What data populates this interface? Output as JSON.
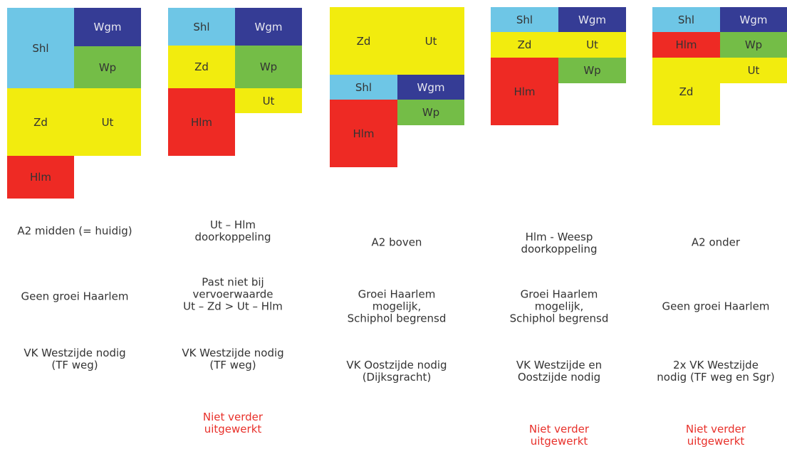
{
  "colors": {
    "Shl": "#6ec6e6",
    "Wgm": "#353c95",
    "Wp": "#74bd47",
    "Zd": "#f2ec0e",
    "Ut": "#f2ec0e",
    "Hlm": "#ee2a24"
  },
  "variants": [
    {
      "blocks": [
        {
          "label": "Shl",
          "color": "#6ec6e6"
        },
        {
          "label": "Wgm",
          "color": "#353c95"
        },
        {
          "label": "Wp",
          "color": "#74bd47"
        },
        {
          "label": "Zd",
          "color": "#f2ec0e"
        },
        {
          "label": "Ut",
          "color": "#f2ec0e"
        },
        {
          "label": "Hlm",
          "color": "#ee2a24"
        }
      ],
      "name": "A2 midden (= huidig)",
      "growth": "Geen groei Haarlem",
      "requirement": "VK Westzijde nodig\n(TF weg)",
      "status": ""
    },
    {
      "blocks": [
        {
          "label": "Shl",
          "color": "#6ec6e6"
        },
        {
          "label": "Wgm",
          "color": "#353c95"
        },
        {
          "label": "Zd",
          "color": "#f2ec0e"
        },
        {
          "label": "Wp",
          "color": "#74bd47"
        },
        {
          "label": "Hlm",
          "color": "#ee2a24"
        },
        {
          "label": "Ut",
          "color": "#f2ec0e"
        }
      ],
      "name": "Ut – Hlm\ndoorkoppeling",
      "growth": "Past niet bij\nvervoerwaarde\nUt – Zd > Ut – Hlm",
      "requirement": "VK Westzijde nodig\n(TF weg)",
      "status": "Niet verder\nuitgewerkt"
    },
    {
      "blocks": [
        {
          "label": "Zd",
          "color": "#f2ec0e"
        },
        {
          "label": "Ut",
          "color": "#f2ec0e"
        },
        {
          "label": "Shl",
          "color": "#6ec6e6"
        },
        {
          "label": "Wgm",
          "color": "#353c95"
        },
        {
          "label": "Hlm",
          "color": "#ee2a24"
        },
        {
          "label": "Wp",
          "color": "#74bd47"
        }
      ],
      "name": "A2 boven",
      "growth": "Groei Haarlem\nmogelijk,\nSchiphol begrensd",
      "requirement": "VK Oostzijde nodig\n(Dijksgracht)",
      "status": ""
    },
    {
      "blocks": [
        {
          "label": "Shl",
          "color": "#6ec6e6"
        },
        {
          "label": "Wgm",
          "color": "#353c95"
        },
        {
          "label": "Zd",
          "color": "#f2ec0e"
        },
        {
          "label": "Ut",
          "color": "#f2ec0e"
        },
        {
          "label": "Hlm",
          "color": "#ee2a24"
        },
        {
          "label": "Wp",
          "color": "#74bd47"
        }
      ],
      "name": "Hlm - Weesp\ndoorkoppeling",
      "growth": "Groei Haarlem\nmogelijk,\nSchiphol begrensd",
      "requirement": "VK Westzijde en\nOostzijde nodig",
      "status": "Niet verder\nuitgewerkt"
    },
    {
      "blocks": [
        {
          "label": "Shl",
          "color": "#6ec6e6"
        },
        {
          "label": "Wgm",
          "color": "#353c95"
        },
        {
          "label": "Hlm",
          "color": "#ee2a24"
        },
        {
          "label": "Wp",
          "color": "#74bd47"
        },
        {
          "label": "Zd",
          "color": "#f2ec0e"
        },
        {
          "label": "Ut",
          "color": "#f2ec0e"
        }
      ],
      "name": "A2 onder",
      "growth": "Geen groei Haarlem",
      "requirement": "2x VK Westzijde\nnodig (TF weg en Sgr)",
      "status": "Niet verder\nuitgewerkt"
    }
  ]
}
